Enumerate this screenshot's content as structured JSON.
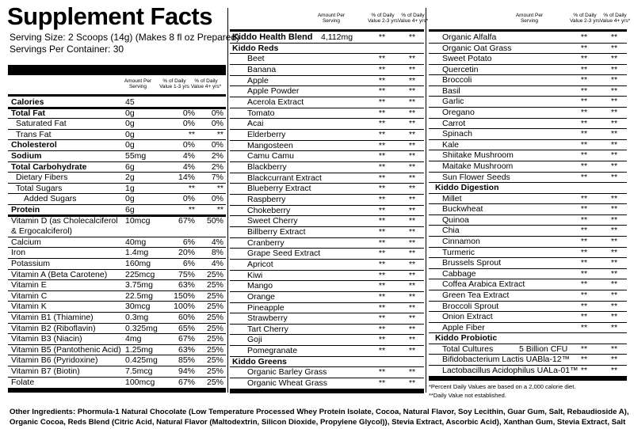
{
  "title": "Supplement Facts",
  "serving_size": "Serving Size: 2 Scoops (14g) (Makes 8 fl oz Prepared)",
  "servings": "Servings Per Container: 30",
  "left": {
    "header": [
      "Amount Per Serving",
      "% of Daily Value 1-3 yrs",
      "% of Daily Value 4+ yrs*"
    ],
    "rows": [
      [
        "Calories",
        "45",
        "",
        ""
      ],
      [
        "Total Fat",
        "0g",
        "0%",
        "0%"
      ],
      [
        "Saturated Fat",
        "0g",
        "0%",
        "0%"
      ],
      [
        "Trans Fat",
        "0g",
        "**",
        "**"
      ],
      [
        "Cholesterol",
        "0g",
        "0%",
        "0%"
      ],
      [
        "Sodium",
        "55mg",
        "4%",
        "2%"
      ],
      [
        "Total Carbohydrate",
        "6g",
        "4%",
        "2%"
      ],
      [
        "Dietary Fibers",
        "2g",
        "14%",
        "7%"
      ],
      [
        "Total Sugars",
        "1g",
        "**",
        "**"
      ],
      [
        "Added Sugars",
        "0g",
        "0%",
        "0%"
      ],
      [
        "Protein",
        "6g",
        "**",
        "**"
      ],
      [
        "Vitamin D (as Cholecalciferol & Ergocalciferol)",
        "10mcg",
        "67%",
        "50%"
      ],
      [
        "Calcium",
        "40mg",
        "6%",
        "4%"
      ],
      [
        "Iron",
        "1.4mg",
        "20%",
        "8%"
      ],
      [
        "Potassium",
        "160mg",
        "6%",
        "4%"
      ],
      [
        "Vitamin A (Beta Carotene)",
        "225mcg",
        "75%",
        "25%"
      ],
      [
        "Vitamin E",
        "3.75mg",
        "63%",
        "25%"
      ],
      [
        "Vitamin C",
        "22.5mg",
        "150%",
        "25%"
      ],
      [
        "Vitamin K",
        "30mcg",
        "100%",
        "25%"
      ],
      [
        "Vitamin B1 (Thiamine)",
        "0.3mg",
        "60%",
        "25%"
      ],
      [
        "Vitamin B2 (Riboflavin)",
        "0.325mg",
        "65%",
        "25%"
      ],
      [
        "Vitamin B3 (Niacin)",
        "4mg",
        "67%",
        "25%"
      ],
      [
        "Vitamin B5 (Pantothenic Acid)",
        "1.25mg",
        "63%",
        "25%"
      ],
      [
        "Vitamin B6 (Pyridoxine)",
        "0.425mg",
        "85%",
        "25%"
      ],
      [
        "Vitamin B7 (Biotin)",
        "7.5mcg",
        "94%",
        "25%"
      ],
      [
        "Folate",
        "100mcg",
        "67%",
        "25%"
      ]
    ]
  },
  "middle": {
    "header": [
      "Amount Per Serving",
      "% of Daily Value 2-3 yrs",
      "% of Daily Value 4+ yrs*"
    ],
    "rows": [
      [
        "Kiddo Health Blend",
        "4,112mg",
        "**",
        "**"
      ],
      [
        "Kiddo Reds"
      ],
      [
        "Beet",
        "**",
        "**"
      ],
      [
        "Banana",
        "**",
        "**"
      ],
      [
        "Apple",
        "**",
        "**"
      ],
      [
        "Apple Powder",
        "**",
        "**"
      ],
      [
        "Acerola Extract",
        "**",
        "**"
      ],
      [
        "Tomato",
        "**",
        "**"
      ],
      [
        "Acai",
        "**",
        "**"
      ],
      [
        "Elderberry",
        "**",
        "**"
      ],
      [
        "Mangosteen",
        "**",
        "**"
      ],
      [
        "Camu Camu",
        "**",
        "**"
      ],
      [
        "Blackberry",
        "**",
        "**"
      ],
      [
        "Blackcurrant Extract",
        "**",
        "**"
      ],
      [
        "Blueberry Extract",
        "**",
        "**"
      ],
      [
        "Raspberry",
        "**",
        "**"
      ],
      [
        "Chokeberry",
        "**",
        "**"
      ],
      [
        "Sweet Cherry",
        "**",
        "**"
      ],
      [
        "Billberry Extract",
        "**",
        "**"
      ],
      [
        "Cranberry",
        "**",
        "**"
      ],
      [
        "Grape Seed Extract",
        "**",
        "**"
      ],
      [
        "Apricot",
        "**",
        "**"
      ],
      [
        "Kiwi",
        "**",
        "**"
      ],
      [
        "Mango",
        "**",
        "**"
      ],
      [
        "Orange",
        "**",
        "**"
      ],
      [
        "Pineapple",
        "**",
        "**"
      ],
      [
        "Strawberry",
        "**",
        "**"
      ],
      [
        "Tart Cherry",
        "**",
        "**"
      ],
      [
        "Goji",
        "**",
        "**"
      ],
      [
        "Pomegranate",
        "**",
        "**"
      ],
      [
        "Kiddo Greens"
      ],
      [
        "Organic Barley Grass",
        "**",
        "**"
      ],
      [
        "Organic Wheat Grass",
        "**",
        "**"
      ]
    ]
  },
  "right": {
    "header": [
      "Amount Per Serving",
      "% of Daily Value 2-3 yrs",
      "% of Daily Value 4+ yrs*"
    ],
    "rows": [
      [
        "Organic Alfalfa",
        "**",
        "**"
      ],
      [
        "Organic Oat Grass",
        "**",
        "**"
      ],
      [
        "Sweet Potato",
        "**",
        "**"
      ],
      [
        "Quercetin",
        "**",
        "**"
      ],
      [
        "Broccoli",
        "**",
        "**"
      ],
      [
        "Basil",
        "**",
        "**"
      ],
      [
        "Garlic",
        "**",
        "**"
      ],
      [
        "Oregano",
        "**",
        "**"
      ],
      [
        "Carrot",
        "**",
        "**"
      ],
      [
        "Spinach",
        "**",
        "**"
      ],
      [
        "Kale",
        "**",
        "**"
      ],
      [
        "Shiitake Mushroom",
        "**",
        "**"
      ],
      [
        "Maitake Mushroom",
        "**",
        "**"
      ],
      [
        "Sun Flower Seeds",
        "**",
        "**"
      ],
      [
        "Kiddo Digestion"
      ],
      [
        "Millet",
        "**",
        "**"
      ],
      [
        "Buckwheat",
        "**",
        "**"
      ],
      [
        "Quinoa",
        "**",
        "**"
      ],
      [
        "Chia",
        "**",
        "**"
      ],
      [
        "Cinnamon",
        "**",
        "**"
      ],
      [
        "Turmeric",
        "**",
        "**"
      ],
      [
        "Brussels Sprout",
        "**",
        "**"
      ],
      [
        "Cabbage",
        "**",
        "**"
      ],
      [
        "Coffea Arabica Extract",
        "**",
        "**"
      ],
      [
        "Green Tea Extract",
        "**",
        "**"
      ],
      [
        "Broccoli Sprout",
        "**",
        "**"
      ],
      [
        "Onion Extract",
        "**",
        "**"
      ],
      [
        "Apple Fiber",
        "**",
        "**"
      ],
      [
        "Kiddo Probiotic"
      ],
      [
        "Total Cultures",
        "5 Billion CFU",
        "**",
        "**"
      ],
      [
        "Bifidobacterium Lactis UABla-12™",
        "**",
        "**"
      ],
      [
        "Lactobacillus Acidophilus UALa-01™",
        "**",
        "**"
      ]
    ],
    "footnotes": [
      "*Percent Daily Values are based on a 2,000 calorie diet.",
      "**Daily Value not established."
    ]
  },
  "ingredients": "Other Ingredients: Phormula-1 Natural Chocolate (Low Temperature Processed Whey Protein Isolate, Cocoa, Natural Flavor, Soy Lecithin, Guar Gum, Salt, Rebaudioside A), Organic Cocoa, Reds Blend (Citric Acid, Natural Flavor (Maltodextrin, Silicon Dioxide, Propylene Glycol)), Stevia Extract, Ascorbic Acid), Xanthan Gum, Stevia Extract, Salt"
}
